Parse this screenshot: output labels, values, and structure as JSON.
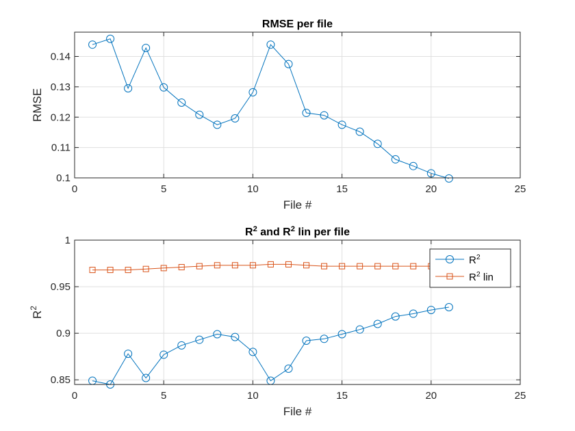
{
  "chart_data": [
    {
      "type": "line",
      "title": "RMSE per file",
      "xlabel": "File #",
      "ylabel": "RMSE",
      "xlim": [
        0,
        25
      ],
      "ylim": [
        0.1,
        0.148
      ],
      "xticks": [
        0,
        5,
        10,
        15,
        20,
        25
      ],
      "yticks": [
        0.1,
        0.11,
        0.12,
        0.13,
        0.14
      ],
      "ytick_labels": [
        "0.1",
        "0.11",
        "0.12",
        "0.13",
        "0.14"
      ],
      "grid": true,
      "legend": null,
      "series": [
        {
          "marker": "circle",
          "color": "#0072BD",
          "x": [
            1,
            2,
            3,
            4,
            5,
            6,
            7,
            8,
            9,
            10,
            11,
            12,
            13,
            14,
            15,
            16,
            17,
            18,
            19,
            20,
            21
          ],
          "y": [
            0.1439,
            0.1458,
            0.1295,
            0.1428,
            0.1298,
            0.1248,
            0.1208,
            0.1175,
            0.1196,
            0.1282,
            0.1439,
            0.1375,
            0.1214,
            0.1206,
            0.1175,
            0.1152,
            0.1112,
            0.1061,
            0.1039,
            0.1015,
            0.0998
          ]
        }
      ]
    },
    {
      "type": "line",
      "title_parts": [
        "R",
        "2",
        " and R",
        "2",
        " lin per file"
      ],
      "xlabel": "File #",
      "ylabel_parts": [
        "R",
        "2"
      ],
      "xlim": [
        0,
        25
      ],
      "ylim": [
        0.845,
        1
      ],
      "xticks": [
        0,
        5,
        10,
        15,
        20,
        25
      ],
      "yticks": [
        0.85,
        0.9,
        0.95,
        1
      ],
      "ytick_labels": [
        "0.85",
        "0.9",
        "0.95",
        "1"
      ],
      "grid": true,
      "legend": "top-right",
      "series": [
        {
          "legend_parts": [
            "R",
            "2",
            ""
          ],
          "marker": "circle",
          "color": "#0072BD",
          "x": [
            1,
            2,
            3,
            4,
            5,
            6,
            7,
            8,
            9,
            10,
            11,
            12,
            13,
            14,
            15,
            16,
            17,
            18,
            19,
            20,
            21
          ],
          "y": [
            0.849,
            0.845,
            0.878,
            0.852,
            0.877,
            0.887,
            0.893,
            0.899,
            0.896,
            0.88,
            0.849,
            0.862,
            0.892,
            0.894,
            0.899,
            0.904,
            0.91,
            0.918,
            0.921,
            0.925,
            0.928
          ]
        },
        {
          "legend_parts": [
            "R",
            "2",
            " lin"
          ],
          "marker": "square",
          "color": "#D95319",
          "x": [
            1,
            2,
            3,
            4,
            5,
            6,
            7,
            8,
            9,
            10,
            11,
            12,
            13,
            14,
            15,
            16,
            17,
            18,
            19,
            20,
            21
          ],
          "y": [
            0.968,
            0.968,
            0.968,
            0.969,
            0.97,
            0.971,
            0.972,
            0.973,
            0.973,
            0.973,
            0.974,
            0.974,
            0.973,
            0.972,
            0.972,
            0.972,
            0.972,
            0.972,
            0.972,
            0.972,
            0.972
          ]
        }
      ]
    }
  ]
}
